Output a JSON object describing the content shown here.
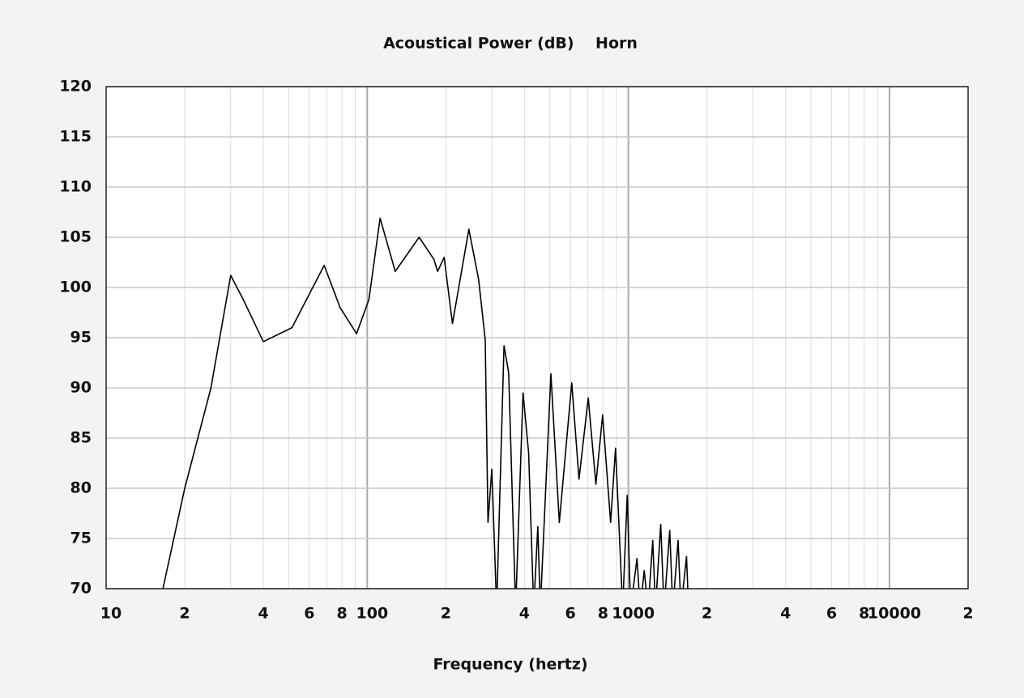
{
  "chart_data": {
    "type": "line",
    "title": "Acoustical Power (dB)    Horn",
    "x_label": "Frequency (hertz)",
    "log_x": true,
    "grid": true,
    "xlim": [
      10,
      20000
    ],
    "xticks": [
      10,
      {
        "value": 20,
        "label": "2"
      },
      {
        "value": 40,
        "label": "4"
      },
      {
        "value": 60,
        "label": "6"
      },
      {
        "value": 80,
        "label": "8"
      },
      100,
      {
        "value": 200,
        "label": "2"
      },
      {
        "value": 400,
        "label": "4"
      },
      {
        "value": 600,
        "label": "6"
      },
      {
        "value": 800,
        "label": "8"
      },
      1000,
      {
        "value": 2000,
        "label": "2"
      },
      {
        "value": 4000,
        "label": "4"
      },
      {
        "value": 6000,
        "label": "6"
      },
      {
        "value": 8000,
        "label": "8"
      },
      10000,
      {
        "value": 20000,
        "label": "2"
      }
    ],
    "ylim": [
      70,
      120
    ],
    "yticks": [
      70,
      75,
      80,
      85,
      90,
      95,
      100,
      105,
      110,
      115,
      120
    ],
    "series": [
      {
        "color": "#000000",
        "x": [
          16.5,
          20,
          25.2,
          30,
          33.5,
          40,
          51.5,
          68.4,
          78.7,
          91,
          101.5,
          112,
          128,
          158,
          180,
          186,
          197,
          212,
          245,
          267,
          283,
          290,
          300,
          313,
          334,
          348,
          370,
          395,
          415,
          434,
          450,
          460,
          505,
          544,
          607,
          647,
          702,
          751,
          797,
          855,
          893,
          951,
          990,
          1020,
          1079,
          1110,
          1150,
          1190,
          1240,
          1270,
          1330,
          1370,
          1440,
          1480,
          1550,
          1590,
          1670,
          1700
        ],
        "values": [
          70,
          80,
          90,
          101.2,
          98.8,
          94.6,
          96,
          102.2,
          98,
          95.4,
          98.8,
          106.9,
          101.6,
          105,
          102.8,
          101.6,
          103,
          96.4,
          105.8,
          100.8,
          94.8,
          76.6,
          81.9,
          68,
          94.2,
          91.5,
          68,
          89.5,
          83.5,
          68,
          76.2,
          68,
          91.4,
          76.6,
          90.5,
          80.9,
          89,
          80.4,
          87.3,
          76.6,
          84,
          68,
          79.3,
          68,
          73,
          68,
          71.8,
          68,
          74.8,
          68,
          76.4,
          68,
          75.8,
          68,
          74.8,
          68,
          73.2,
          68
        ]
      }
    ]
  }
}
